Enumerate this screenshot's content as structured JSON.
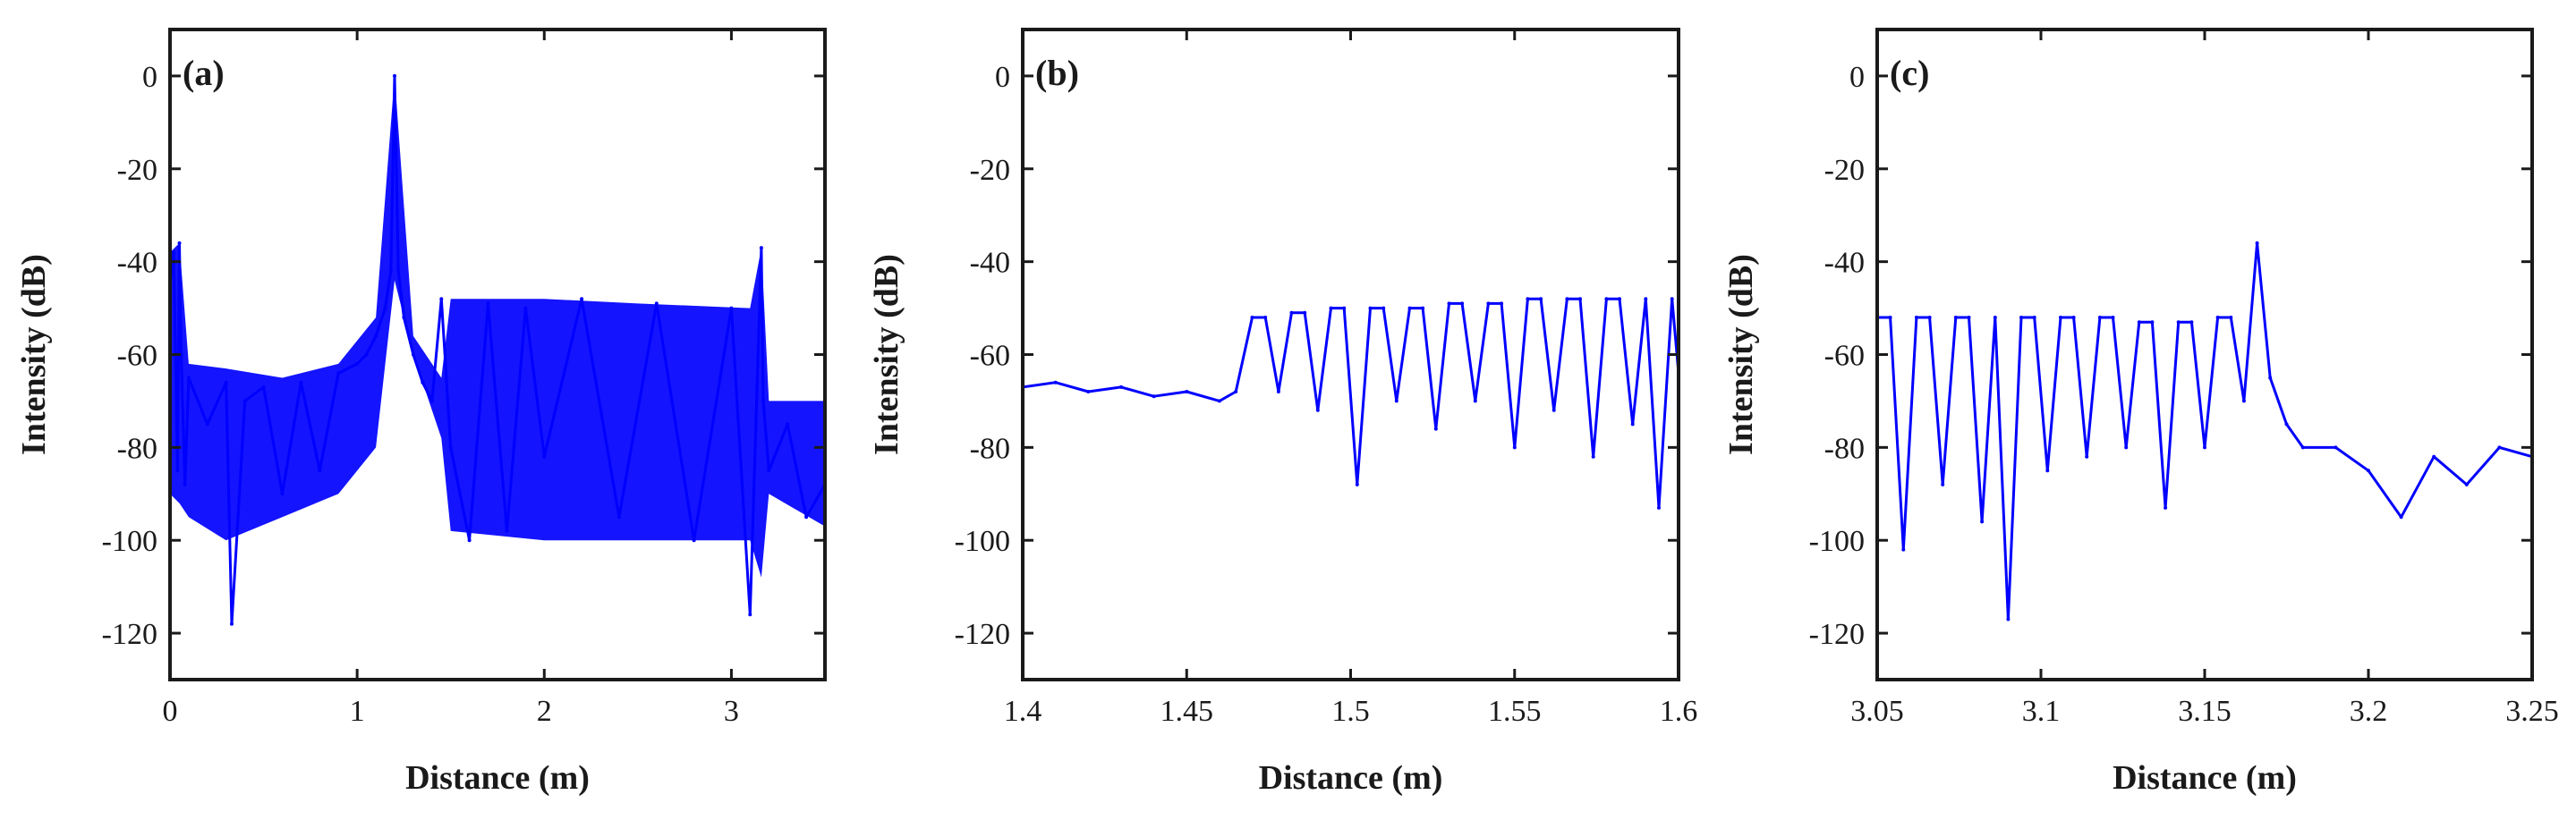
{
  "chart_data": [
    {
      "type": "line",
      "panel_label": "(a)",
      "xlabel": "Distance (m)",
      "ylabel": "Intensity (dB)",
      "xlim": [
        0,
        3.5
      ],
      "ylim": [
        -130,
        10
      ],
      "xticks": [
        0,
        1,
        2,
        3
      ],
      "xtick_labels": [
        "0",
        "1",
        "2",
        "3"
      ],
      "yticks": [
        0,
        -20,
        -40,
        -60,
        -80,
        -100,
        -120
      ],
      "ytick_labels": [
        "0",
        "-20",
        "-40",
        "-60",
        "-80",
        "-100",
        "-120"
      ],
      "grid": false,
      "series_color": "#0000ff",
      "x": [
        0,
        0.02,
        0.04,
        0.05,
        0.06,
        0.08,
        0.1,
        0.2,
        0.3,
        0.33,
        0.4,
        0.5,
        0.6,
        0.7,
        0.8,
        0.9,
        1.0,
        1.05,
        1.1,
        1.15,
        1.18,
        1.2,
        1.22,
        1.25,
        1.3,
        1.35,
        1.4,
        1.45,
        1.5,
        1.6,
        1.7,
        1.8,
        1.9,
        2.0,
        2.2,
        2.4,
        2.6,
        2.8,
        3.0,
        3.1,
        3.16,
        3.17,
        3.2,
        3.3,
        3.4,
        3.5
      ],
      "y": [
        -45,
        -38,
        -85,
        -36,
        -60,
        -88,
        -65,
        -75,
        -66,
        -118,
        -70,
        -67,
        -90,
        -66,
        -85,
        -64,
        -62,
        -60,
        -56,
        -50,
        -42,
        0,
        -42,
        -52,
        -60,
        -66,
        -70,
        -48,
        -80,
        -100,
        -49,
        -98,
        -50,
        -82,
        -48,
        -95,
        -49,
        -100,
        -50,
        -116,
        -37,
        -70,
        -85,
        -75,
        -95,
        -88
      ],
      "envelope": {
        "x": [
          0,
          0.05,
          0.1,
          0.3,
          0.6,
          0.9,
          1.1,
          1.2,
          1.3,
          1.45,
          1.5,
          2.0,
          2.5,
          3.1,
          3.16,
          3.2,
          3.5
        ],
        "upper": [
          -38,
          -36,
          -62,
          -63,
          -65,
          -62,
          -52,
          0,
          -56,
          -65,
          -48,
          -48,
          -49,
          -50,
          -37,
          -70,
          -70
        ],
        "lower": [
          -90,
          -92,
          -95,
          -100,
          -95,
          -90,
          -80,
          -44,
          -60,
          -78,
          -98,
          -100,
          -100,
          -100,
          -108,
          -90,
          -97
        ]
      }
    },
    {
      "type": "line",
      "panel_label": "(b)",
      "xlabel": "Distance (m)",
      "ylabel": "Intensity (dB)",
      "xlim": [
        1.4,
        1.6
      ],
      "ylim": [
        -130,
        10
      ],
      "xticks": [
        1.4,
        1.45,
        1.5,
        1.55,
        1.6
      ],
      "xtick_labels": [
        "1.4",
        "1.45",
        "1.5",
        "1.55",
        "1.6"
      ],
      "yticks": [
        0,
        -20,
        -40,
        -60,
        -80,
        -100,
        -120
      ],
      "ytick_labels": [
        "0",
        "-20",
        "-40",
        "-60",
        "-80",
        "-100",
        "-120"
      ],
      "grid": false,
      "series_color": "#0000ff",
      "x": [
        1.4,
        1.41,
        1.42,
        1.43,
        1.44,
        1.45,
        1.46,
        1.465,
        1.47,
        1.474,
        1.478,
        1.482,
        1.486,
        1.49,
        1.494,
        1.498,
        1.502,
        1.506,
        1.51,
        1.514,
        1.518,
        1.522,
        1.526,
        1.53,
        1.534,
        1.538,
        1.542,
        1.546,
        1.55,
        1.554,
        1.558,
        1.562,
        1.566,
        1.57,
        1.574,
        1.578,
        1.582,
        1.586,
        1.59,
        1.594,
        1.598,
        1.6
      ],
      "y": [
        -67,
        -66,
        -68,
        -67,
        -69,
        -68,
        -70,
        -68,
        -52,
        -52,
        -68,
        -51,
        -51,
        -72,
        -50,
        -50,
        -88,
        -50,
        -50,
        -70,
        -50,
        -50,
        -76,
        -49,
        -49,
        -70,
        -49,
        -49,
        -80,
        -48,
        -48,
        -72,
        -48,
        -48,
        -82,
        -48,
        -48,
        -75,
        -48,
        -93,
        -48,
        -64
      ]
    },
    {
      "type": "line",
      "panel_label": "(c)",
      "xlabel": "Distance (m)",
      "ylabel": "Intensity (dB)",
      "xlim": [
        3.05,
        3.25
      ],
      "ylim": [
        -130,
        10
      ],
      "xticks": [
        3.05,
        3.1,
        3.15,
        3.2,
        3.25
      ],
      "xtick_labels": [
        "3.05",
        "3.1",
        "3.15",
        "3.2",
        "3.25"
      ],
      "yticks": [
        0,
        -20,
        -40,
        -60,
        -80,
        -100,
        -120
      ],
      "ytick_labels": [
        "0",
        "-20",
        "-40",
        "-60",
        "-80",
        "-100",
        "-120"
      ],
      "grid": false,
      "series_color": "#0000ff",
      "x": [
        3.05,
        3.054,
        3.058,
        3.062,
        3.066,
        3.07,
        3.074,
        3.078,
        3.082,
        3.086,
        3.09,
        3.094,
        3.098,
        3.102,
        3.106,
        3.11,
        3.114,
        3.118,
        3.122,
        3.126,
        3.13,
        3.134,
        3.138,
        3.142,
        3.146,
        3.15,
        3.154,
        3.158,
        3.162,
        3.166,
        3.17,
        3.175,
        3.18,
        3.19,
        3.2,
        3.21,
        3.22,
        3.23,
        3.24,
        3.25
      ],
      "y": [
        -52,
        -52,
        -102,
        -52,
        -52,
        -88,
        -52,
        -52,
        -96,
        -52,
        -117,
        -52,
        -52,
        -85,
        -52,
        -52,
        -82,
        -52,
        -52,
        -80,
        -53,
        -53,
        -93,
        -53,
        -53,
        -80,
        -52,
        -52,
        -70,
        -36,
        -65,
        -75,
        -80,
        -80,
        -85,
        -95,
        -82,
        -88,
        -80,
        -82
      ]
    }
  ]
}
